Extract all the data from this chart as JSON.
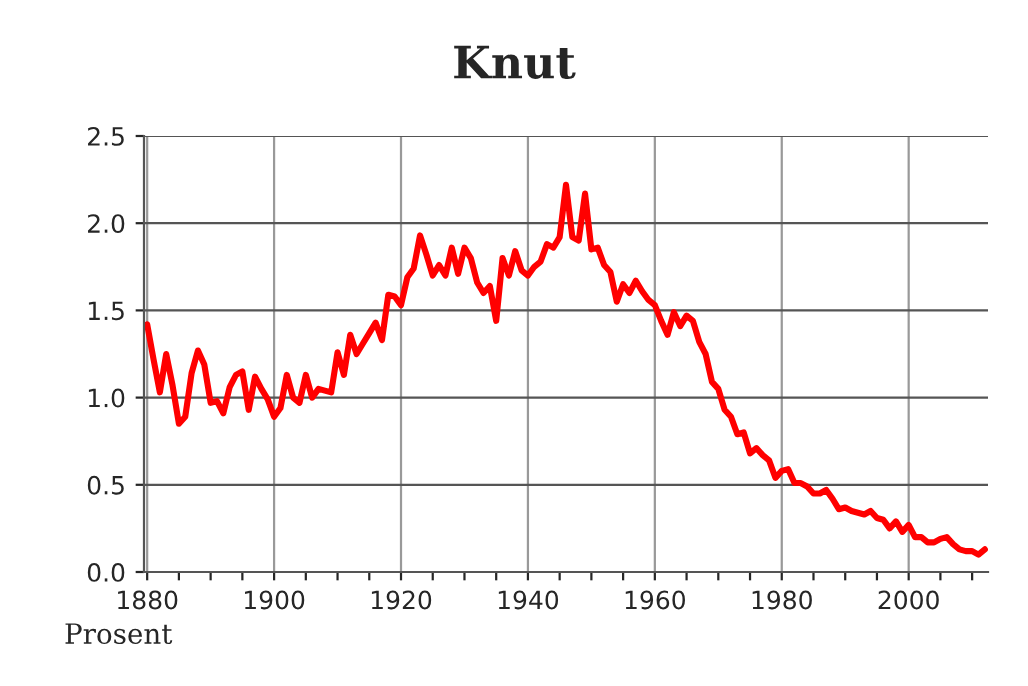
{
  "chart_data": {
    "type": "line",
    "title": "Knut",
    "annotations": [
      "Prosent"
    ],
    "x": [
      1880,
      1881,
      1882,
      1883,
      1884,
      1885,
      1886,
      1887,
      1888,
      1889,
      1890,
      1891,
      1892,
      1893,
      1894,
      1895,
      1896,
      1897,
      1898,
      1899,
      1900,
      1901,
      1902,
      1903,
      1904,
      1905,
      1906,
      1907,
      1908,
      1909,
      1910,
      1911,
      1912,
      1913,
      1914,
      1915,
      1916,
      1917,
      1918,
      1919,
      1920,
      1921,
      1922,
      1923,
      1924,
      1925,
      1926,
      1927,
      1928,
      1929,
      1930,
      1931,
      1932,
      1933,
      1934,
      1935,
      1936,
      1937,
      1938,
      1939,
      1940,
      1941,
      1942,
      1943,
      1944,
      1945,
      1946,
      1947,
      1948,
      1949,
      1950,
      1951,
      1952,
      1953,
      1954,
      1955,
      1956,
      1957,
      1958,
      1959,
      1960,
      1961,
      1962,
      1963,
      1964,
      1965,
      1966,
      1967,
      1968,
      1969,
      1970,
      1971,
      1972,
      1973,
      1974,
      1975,
      1976,
      1977,
      1978,
      1979,
      1980,
      1981,
      1982,
      1983,
      1984,
      1985,
      1986,
      1987,
      1988,
      1989,
      1990,
      1991,
      1992,
      1993,
      1994,
      1995,
      1996,
      1997,
      1998,
      1999,
      2000,
      2001,
      2002,
      2003,
      2004,
      2005,
      2006,
      2007,
      2008,
      2009,
      2010,
      2011,
      2012
    ],
    "series": [
      {
        "color": "#ff0000",
        "values": [
          1.42,
          1.22,
          1.03,
          1.25,
          1.07,
          0.85,
          0.89,
          1.14,
          1.27,
          1.19,
          0.97,
          0.98,
          0.91,
          1.06,
          1.13,
          1.15,
          0.93,
          1.12,
          1.05,
          0.99,
          0.89,
          0.94,
          1.13,
          1.0,
          0.97,
          1.13,
          1.0,
          1.05,
          1.04,
          1.03,
          1.26,
          1.13,
          1.36,
          1.25,
          1.31,
          1.37,
          1.43,
          1.33,
          1.59,
          1.58,
          1.53,
          1.69,
          1.74,
          1.93,
          1.82,
          1.7,
          1.76,
          1.7,
          1.86,
          1.71,
          1.86,
          1.8,
          1.66,
          1.6,
          1.64,
          1.44,
          1.8,
          1.7,
          1.84,
          1.73,
          1.7,
          1.75,
          1.78,
          1.88,
          1.86,
          1.92,
          2.22,
          1.92,
          1.9,
          2.17,
          1.85,
          1.86,
          1.76,
          1.72,
          1.55,
          1.65,
          1.6,
          1.67,
          1.61,
          1.56,
          1.53,
          1.44,
          1.36,
          1.49,
          1.41,
          1.47,
          1.44,
          1.32,
          1.25,
          1.09,
          1.05,
          0.93,
          0.89,
          0.79,
          0.8,
          0.68,
          0.71,
          0.67,
          0.64,
          0.54,
          0.58,
          0.59,
          0.51,
          0.51,
          0.49,
          0.45,
          0.45,
          0.47,
          0.42,
          0.36,
          0.37,
          0.35,
          0.34,
          0.33,
          0.35,
          0.31,
          0.3,
          0.25,
          0.29,
          0.23,
          0.27,
          0.2,
          0.2,
          0.17,
          0.17,
          0.19,
          0.2,
          0.16,
          0.13,
          0.12,
          0.12,
          0.1,
          0.13
        ]
      }
    ],
    "xlim": [
      1879.5,
      2012.5
    ],
    "xticks": [
      1880,
      {
        "value": 1885,
        "label": null
      },
      {
        "value": 1890,
        "label": null
      },
      {
        "value": 1895,
        "label": null
      },
      1900,
      {
        "value": 1905,
        "label": null
      },
      {
        "value": 1910,
        "label": null
      },
      {
        "value": 1915,
        "label": null
      },
      1920,
      {
        "value": 1925,
        "label": null
      },
      {
        "value": 1930,
        "label": null
      },
      {
        "value": 1935,
        "label": null
      },
      1940,
      {
        "value": 1945,
        "label": null
      },
      {
        "value": 1950,
        "label": null
      },
      {
        "value": 1955,
        "label": null
      },
      1960,
      {
        "value": 1965,
        "label": null
      },
      {
        "value": 1970,
        "label": null
      },
      {
        "value": 1975,
        "label": null
      },
      1980,
      {
        "value": 1985,
        "label": null
      },
      {
        "value": 1990,
        "label": null
      },
      {
        "value": 1995,
        "label": null
      },
      2000,
      {
        "value": 2005,
        "label": null
      },
      {
        "value": 2010,
        "label": null
      }
    ],
    "ylim": [
      0,
      2.5
    ],
    "yticks": [
      {
        "value": 0,
        "label": "0.0"
      },
      {
        "value": 0.5,
        "label": "0.5"
      },
      {
        "value": 1,
        "label": "1.0"
      },
      {
        "value": 1.5,
        "label": "1.5"
      },
      {
        "value": 2,
        "label": "2.0"
      },
      {
        "value": 2.5,
        "label": "2.5"
      }
    ],
    "grid": true,
    "marker": "none",
    "line_style": "solid",
    "legend": false
  }
}
